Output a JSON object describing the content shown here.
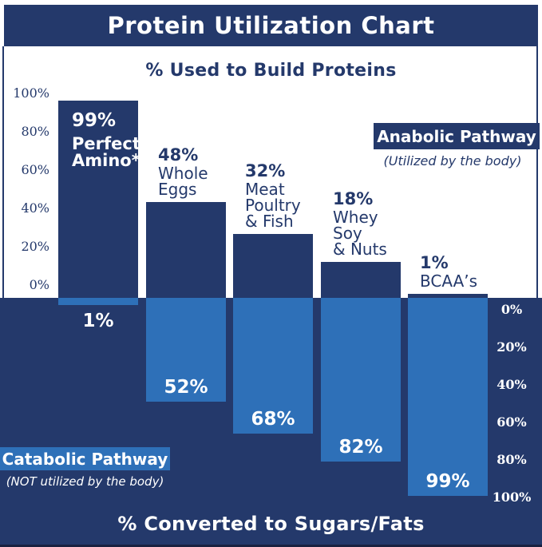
{
  "title": "Protein Utilization Chart",
  "subtitle": "% Used to Build Proteins",
  "bottom_label": "% Converted to Sugars/Fats",
  "legend": {
    "anabolic": {
      "label": "Anabolic Pathway",
      "caption": "(Utilized by the body)"
    },
    "catabolic": {
      "label": "Catabolic Pathway",
      "caption": "(NOT utilized by the body)"
    }
  },
  "colors": {
    "navy": "#24396B",
    "light_blue": "#2E70B8",
    "white": "#FFFFFF"
  },
  "axes": {
    "left_ticks": [
      "100%",
      "80%",
      "60%",
      "40%",
      "20%",
      "0%"
    ],
    "right_ticks": [
      "0%",
      "20%",
      "40%",
      "60%",
      "80%",
      "100%"
    ]
  },
  "chart_data": {
    "type": "bar",
    "orientation": "diverging-vertical",
    "title": "Protein Utilization Chart",
    "top_axis_label": "% Used to Build Proteins",
    "bottom_axis_label": "% Converted to Sugars/Fats",
    "ylim_up": [
      0,
      100
    ],
    "ylim_down": [
      0,
      100
    ],
    "grid": false,
    "categories": [
      "Perfect Amino*",
      "Whole Eggs",
      "Meat Poultry & Fish",
      "Whey Soy & Nuts",
      "BCAA’s"
    ],
    "series": [
      {
        "name": "Anabolic Pathway (Utilized by the body)",
        "values": [
          99,
          48,
          32,
          18,
          1
        ]
      },
      {
        "name": "Catabolic Pathway (NOT utilized by the body)",
        "values": [
          1,
          52,
          68,
          82,
          99
        ]
      }
    ],
    "items": [
      {
        "id": "perfect-amino",
        "name_lines": [
          "Perfect",
          "Amino*"
        ],
        "anabolic": 99,
        "anabolic_label": "99%",
        "catabolic": 1,
        "catabolic_label": "1%",
        "label_placement": "inside"
      },
      {
        "id": "whole-eggs",
        "name_lines": [
          "Whole",
          "Eggs"
        ],
        "anabolic": 48,
        "anabolic_label": "48%",
        "catabolic": 52,
        "catabolic_label": "52%",
        "label_placement": "above"
      },
      {
        "id": "meat-poultry-fish",
        "name_lines": [
          "Meat",
          "Poultry",
          "& Fish"
        ],
        "anabolic": 32,
        "anabolic_label": "32%",
        "catabolic": 68,
        "catabolic_label": "68%",
        "label_placement": "above"
      },
      {
        "id": "whey-soy-nuts",
        "name_lines": [
          "Whey",
          "Soy",
          "& Nuts"
        ],
        "anabolic": 18,
        "anabolic_label": "18%",
        "catabolic": 82,
        "catabolic_label": "82%",
        "label_placement": "above"
      },
      {
        "id": "bcaas",
        "name_lines": [
          "BCAA’s"
        ],
        "anabolic": 1,
        "anabolic_label": "1%",
        "catabolic": 99,
        "catabolic_label": "99%",
        "label_placement": "above"
      }
    ]
  }
}
